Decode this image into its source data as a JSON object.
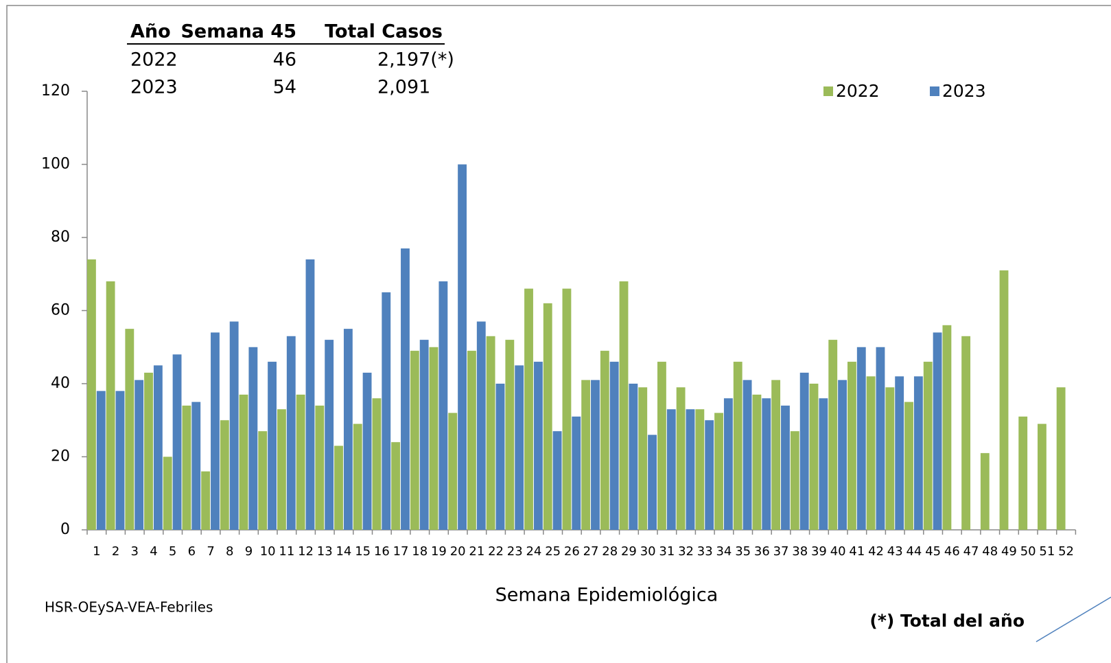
{
  "chart_data": {
    "type": "bar",
    "x_label": "Semana Epidemiológica",
    "categories": [
      "1",
      "2",
      "3",
      "4",
      "5",
      "6",
      "7",
      "8",
      "9",
      "10",
      "11",
      "12",
      "13",
      "14",
      "15",
      "16",
      "17",
      "18",
      "19",
      "20",
      "21",
      "22",
      "23",
      "24",
      "25",
      "26",
      "27",
      "28",
      "29",
      "30",
      "31",
      "32",
      "33",
      "34",
      "35",
      "36",
      "37",
      "38",
      "39",
      "40",
      "41",
      "42",
      "43",
      "44",
      "45",
      "46",
      "47",
      "48",
      "49",
      "50",
      "51",
      "52"
    ],
    "series": [
      {
        "name": "2022",
        "color": "#9bbb59",
        "values": [
          74,
          68,
          55,
          43,
          20,
          34,
          16,
          30,
          37,
          27,
          33,
          37,
          34,
          23,
          29,
          36,
          24,
          49,
          50,
          32,
          49,
          53,
          52,
          66,
          62,
          66,
          41,
          49,
          68,
          39,
          46,
          39,
          33,
          32,
          46,
          37,
          41,
          27,
          40,
          52,
          46,
          42,
          39,
          35,
          46,
          56,
          53,
          21,
          71,
          31,
          29,
          39
        ]
      },
      {
        "name": "2023",
        "color": "#4f81bd",
        "values": [
          38,
          38,
          41,
          45,
          48,
          35,
          54,
          57,
          50,
          46,
          53,
          74,
          52,
          55,
          43,
          65,
          77,
          52,
          68,
          100,
          57,
          40,
          45,
          46,
          27,
          31,
          41,
          46,
          40,
          26,
          33,
          33,
          30,
          36,
          41,
          36,
          34,
          43,
          36,
          41,
          50,
          50,
          42,
          42,
          54,
          null,
          null,
          null,
          null,
          null,
          null,
          null
        ]
      }
    ],
    "ylim": [
      0,
      120
    ],
    "yticks": [
      0,
      20,
      40,
      60,
      80,
      100,
      120
    ],
    "legend": "top-right"
  },
  "table": {
    "headers": [
      "Año",
      "Semana 45",
      "Total Casos"
    ],
    "rows": [
      [
        "2022",
        "46",
        "2,197(*)"
      ],
      [
        "2023",
        "54",
        "2,091"
      ]
    ]
  },
  "source": "HSR-OEySA-VEA-Febriles",
  "note": "(*) Total del año"
}
